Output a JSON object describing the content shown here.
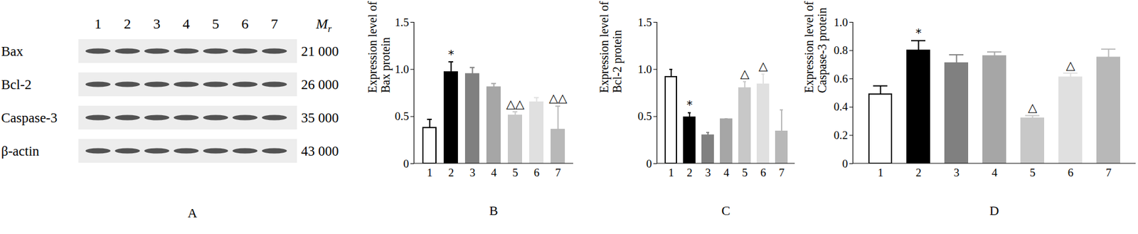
{
  "blot": {
    "title": "A",
    "lanes": [
      "1",
      "2",
      "3",
      "4",
      "5",
      "6",
      "7"
    ],
    "mr_header": "M",
    "mr_subscript": "r",
    "rows": [
      {
        "label": "Bax",
        "mr": "21 000"
      },
      {
        "label": "Bcl-2",
        "mr": "26 000"
      },
      {
        "label": "Caspase-3",
        "mr": "35 000"
      },
      {
        "label": "β-actin",
        "mr": "43 000"
      }
    ]
  },
  "chart_data": [
    {
      "type": "bar",
      "title": "B",
      "y_label": "Expression level of\nBax protein",
      "categories": [
        "1",
        "2",
        "3",
        "4",
        "5",
        "6",
        "7"
      ],
      "values": [
        0.38,
        0.97,
        0.95,
        0.81,
        0.51,
        0.65,
        0.36
      ],
      "errors": [
        0.09,
        0.11,
        0.07,
        0.04,
        0.04,
        0.05,
        0.25
      ],
      "annotations": [
        null,
        "*",
        null,
        null,
        "△△",
        null,
        "△△"
      ],
      "colors": [
        "#ffffff",
        "#000000",
        "#808080",
        "#a6a6a6",
        "#c8c8c8",
        "#e0e0e0",
        "#b8b8b8"
      ],
      "ylim": [
        0,
        1.5
      ],
      "yticks": [
        0,
        0.5,
        {
          "value": 1,
          "label": "1.0"
        },
        1.5
      ]
    },
    {
      "type": "bar",
      "title": "C",
      "y_label": "Expression level of\nBcl-2 protein",
      "categories": [
        "1",
        "2",
        "3",
        "4",
        "5",
        "6",
        "7"
      ],
      "values": [
        0.92,
        0.49,
        0.3,
        0.47,
        0.8,
        0.84,
        0.34
      ],
      "errors": [
        0.08,
        0.05,
        0.03,
        0.005,
        0.07,
        0.11,
        0.23
      ],
      "annotations": [
        null,
        "*",
        null,
        null,
        "△",
        "△",
        null
      ],
      "colors": [
        "#ffffff",
        "#000000",
        "#808080",
        "#a6a6a6",
        "#c8c8c8",
        "#e0e0e0",
        "#b8b8b8"
      ],
      "ylim": [
        0,
        1.5
      ],
      "yticks": [
        0,
        0.5,
        {
          "value": 1,
          "label": "1.0"
        },
        1.5
      ]
    },
    {
      "type": "bar",
      "title": "D",
      "y_label": "Expression level of\nCaspase-3 protein",
      "categories": [
        "1",
        "2",
        "3",
        "4",
        "5",
        "6",
        "7"
      ],
      "values": [
        0.49,
        0.8,
        0.71,
        0.76,
        0.32,
        0.61,
        0.75
      ],
      "errors": [
        0.06,
        0.07,
        0.06,
        0.03,
        0.02,
        0.03,
        0.06
      ],
      "annotations": [
        null,
        "*",
        null,
        null,
        "△",
        "△",
        null
      ],
      "colors": [
        "#ffffff",
        "#000000",
        "#808080",
        "#a6a6a6",
        "#c8c8c8",
        "#e0e0e0",
        "#b8b8b8"
      ],
      "ylim": [
        0,
        1
      ],
      "yticks": [
        0,
        0.2,
        0.4,
        0.6,
        0.8,
        {
          "value": 1,
          "label": "1.0"
        }
      ]
    }
  ]
}
